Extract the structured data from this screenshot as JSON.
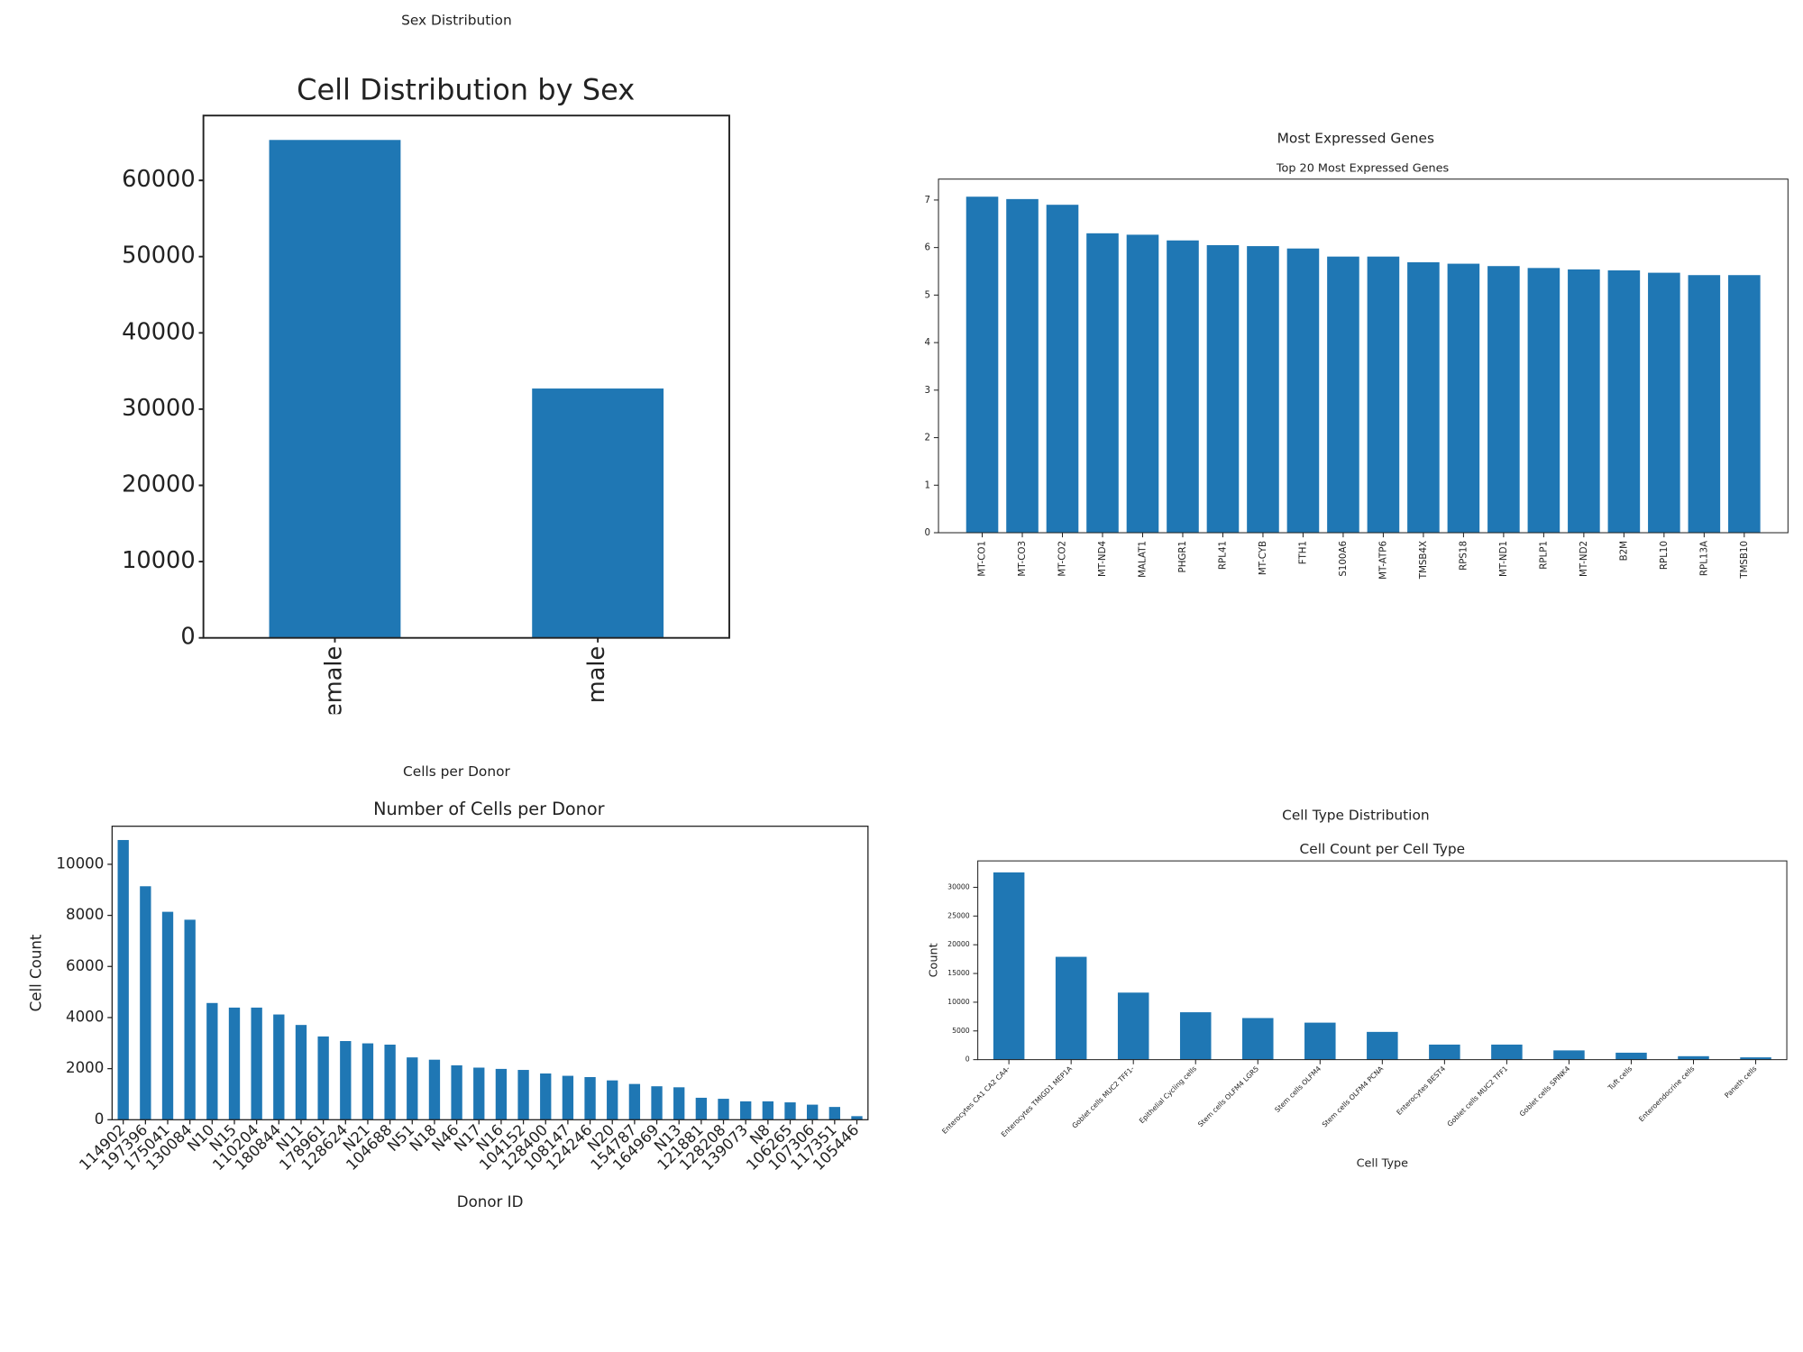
{
  "chart_data": [
    {
      "type": "bar",
      "panel_title": "Sex Distribution",
      "title": "Cell Distribution by Sex",
      "categories": [
        "female",
        "male"
      ],
      "values": [
        65300,
        32700
      ],
      "color": "#1f77b4",
      "ylim": [
        0,
        68500
      ],
      "yticks": [
        0,
        10000,
        20000,
        30000,
        40000,
        50000,
        60000
      ]
    },
    {
      "type": "bar",
      "panel_title": "Most Expressed Genes",
      "title": "Top 20 Most Expressed Genes",
      "categories": [
        "MT-CO1",
        "MT-CO3",
        "MT-CO2",
        "MT-ND4",
        "MALAT1",
        "PHGR1",
        "RPL41",
        "MT-CYB",
        "FTH1",
        "S100A6",
        "MT-ATP6",
        "TMSB4X",
        "RPS18",
        "MT-ND1",
        "RPLP1",
        "MT-ND2",
        "B2M",
        "RPL10",
        "RPL13A",
        "TMSB10"
      ],
      "values": [
        7.07,
        7.02,
        6.9,
        6.3,
        6.27,
        6.15,
        6.05,
        6.03,
        5.98,
        5.81,
        5.81,
        5.69,
        5.66,
        5.61,
        5.57,
        5.54,
        5.52,
        5.47,
        5.42,
        5.42
      ],
      "color": "#1f77b4",
      "ylim": [
        0,
        7.44
      ],
      "yticks": [
        0,
        1,
        2,
        3,
        4,
        5,
        6,
        7
      ]
    },
    {
      "type": "bar",
      "panel_title": "Cells per Donor",
      "title": "Number of Cells per Donor",
      "x_label": "Donor ID",
      "y_label": "Cell Count",
      "categories": [
        "114902",
        "197396",
        "175041",
        "130084",
        "N10",
        "N15",
        "110204",
        "180844",
        "N11",
        "178961",
        "128624",
        "N21",
        "104688",
        "N51",
        "N18",
        "N46",
        "N17",
        "N16",
        "104152",
        "128400",
        "108147",
        "124246",
        "N20",
        "154787",
        "164969",
        "N13",
        "121881",
        "128208",
        "139073",
        "N8",
        "106265",
        "107306",
        "117351",
        "105446"
      ],
      "values": [
        10950,
        9140,
        8140,
        7830,
        4570,
        4390,
        4390,
        4120,
        3710,
        3260,
        3080,
        2990,
        2940,
        2440,
        2350,
        2130,
        2040,
        1990,
        1950,
        1810,
        1720,
        1670,
        1540,
        1400,
        1310,
        1270,
        860,
        820,
        720,
        720,
        680,
        590,
        500,
        140
      ],
      "color": "#1f77b4",
      "ylim": [
        0,
        11490
      ],
      "yticks": [
        0,
        2000,
        4000,
        6000,
        8000,
        10000
      ]
    },
    {
      "type": "bar",
      "panel_title": "Cell Type Distribution",
      "title": "Cell Count per Cell Type",
      "x_label": "Cell Type",
      "y_label": "Count",
      "categories": [
        "Enterocytes CA1 CA2 CA4-",
        "Enterocytes TMIGD1 MEP1A",
        "Goblet cells MUC2 TFF1-",
        "Epithelial Cycling cells",
        "Stem cells OLFM4 LGR5",
        "Stem cells OLFM4",
        "Stem cells OLFM4 PCNA",
        "Enterocytes BEST4",
        "Goblet cells MUC2 TFF1",
        "Goblet cells SPINK4",
        "Tuft cells",
        "Enteroendocrine cells",
        "Paneth cells"
      ],
      "values": [
        32600,
        17900,
        11670,
        8250,
        7240,
        6440,
        4830,
        2620,
        2620,
        1610,
        1210,
        600,
        400
      ],
      "color": "#1f77b4",
      "ylim": [
        0,
        34600
      ],
      "yticks": [
        0,
        5000,
        10000,
        15000,
        20000,
        25000,
        30000
      ]
    }
  ]
}
